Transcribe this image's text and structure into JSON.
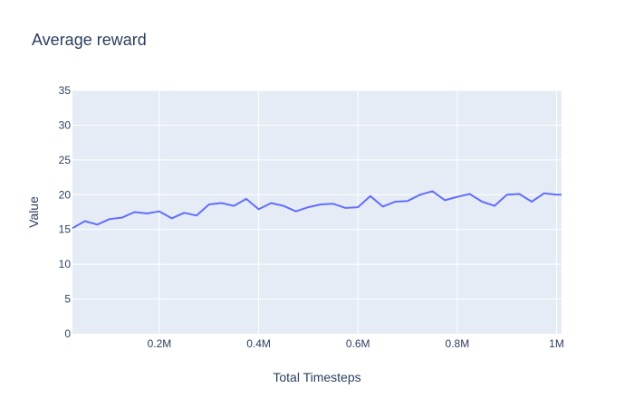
{
  "chart_data": {
    "type": "line",
    "title": "Average reward",
    "xlabel": "Total Timesteps",
    "ylabel": "Value",
    "xlim": [
      25000,
      1010000
    ],
    "ylim": [
      0,
      35
    ],
    "x_ticks": [
      {
        "value": 200000,
        "label": "0.2M"
      },
      {
        "value": 400000,
        "label": "0.4M"
      },
      {
        "value": 600000,
        "label": "0.6M"
      },
      {
        "value": 800000,
        "label": "0.8M"
      },
      {
        "value": 1000000,
        "label": "1M"
      }
    ],
    "y_ticks": [
      0,
      5,
      10,
      15,
      20,
      25,
      30,
      35
    ],
    "grid": true,
    "colors": {
      "plot_bg": "#e5ecf6",
      "grid": "#ffffff",
      "line": "#636efa",
      "text": "#2a3f5f"
    },
    "series": [
      {
        "x": [
          25000,
          50000,
          75000,
          100000,
          125000,
          150000,
          175000,
          200000,
          225000,
          250000,
          275000,
          300000,
          325000,
          350000,
          375000,
          400000,
          425000,
          450000,
          475000,
          500000,
          525000,
          550000,
          575000,
          600000,
          625000,
          650000,
          675000,
          700000,
          725000,
          750000,
          775000,
          800000,
          825000,
          850000,
          875000,
          900000,
          925000,
          950000,
          975000,
          1000000,
          1010000
        ],
        "values": [
          15.2,
          16.2,
          15.7,
          16.5,
          16.7,
          17.5,
          17.3,
          17.6,
          16.6,
          17.4,
          17.0,
          18.6,
          18.8,
          18.4,
          19.4,
          17.9,
          18.8,
          18.4,
          17.6,
          18.2,
          18.6,
          18.7,
          18.1,
          18.2,
          19.8,
          18.3,
          19.0,
          19.1,
          20.0,
          20.5,
          19.2,
          19.7,
          20.1,
          19.0,
          18.4,
          20.0,
          20.1,
          19.0,
          20.2,
          20.0,
          20.0
        ]
      }
    ]
  }
}
